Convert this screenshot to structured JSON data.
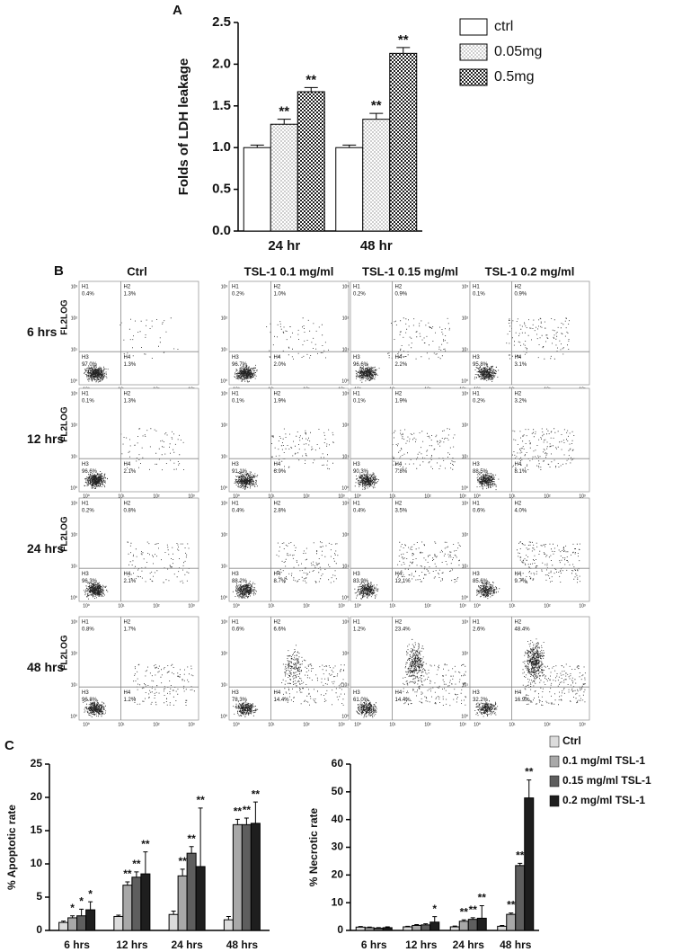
{
  "panel_labels": [
    "A",
    "B",
    "C"
  ],
  "chart_data": [
    {
      "type": "bar",
      "ylabel": "Folds of LDH leakage",
      "categories": [
        "24 hr",
        "48 hr"
      ],
      "ylim": [
        0,
        2.5
      ],
      "yticks": [
        {
          "value": 0,
          "label": "0.0"
        },
        {
          "value": 0.5,
          "label": "0.5"
        },
        {
          "value": 1,
          "label": "1.0"
        },
        {
          "value": 1.5,
          "label": "1.5"
        },
        {
          "value": 2,
          "label": "2.0"
        },
        {
          "value": 2.5,
          "label": "2.5"
        }
      ],
      "series": [
        {
          "name": "ctrl",
          "color": "#ffffff",
          "hatch": "none",
          "values": [
            1.0,
            1.0
          ],
          "errors": [
            0.03,
            0.03
          ],
          "annotations": [
            null,
            null
          ]
        },
        {
          "name": "0.05mg",
          "color": "#ffffff",
          "hatch": "dots",
          "values": [
            1.28,
            1.34
          ],
          "errors": [
            0.06,
            0.07
          ],
          "annotations": [
            "**",
            "**"
          ]
        },
        {
          "name": "0.5mg",
          "color": "#ffffff",
          "hatch": "checker",
          "values": [
            1.67,
            2.13
          ],
          "errors": [
            0.05,
            0.07
          ],
          "annotations": [
            "**",
            "**"
          ]
        }
      ]
    },
    {
      "type": "bar",
      "ylabel": "% Apoptotic rate",
      "categories": [
        "6 hrs",
        "12 hrs",
        "24 hrs",
        "48 hrs"
      ],
      "ylim": [
        0,
        25
      ],
      "yticks": [
        0,
        5,
        10,
        15,
        20,
        25
      ],
      "series": [
        {
          "color": "#dcdcdc",
          "values": [
            1.2,
            2.1,
            2.4,
            1.6
          ],
          "errors": [
            0.2,
            0.2,
            0.5,
            0.5
          ],
          "annotations": [
            null,
            null,
            null,
            null
          ]
        },
        {
          "color": "#a8a8a8",
          "values": [
            1.9,
            6.8,
            8.2,
            15.9
          ],
          "errors": [
            0.3,
            0.5,
            1.0,
            0.8
          ],
          "annotations": [
            "*",
            "**",
            "**",
            "**"
          ]
        },
        {
          "color": "#5e5e5e",
          "values": [
            2.2,
            8.0,
            11.6,
            15.9
          ],
          "errors": [
            1.0,
            0.8,
            1.0,
            1.0
          ],
          "annotations": [
            "*",
            "**",
            "**",
            "**"
          ]
        },
        {
          "color": "#1e1e1e",
          "values": [
            3.1,
            8.5,
            9.6,
            16.1
          ],
          "errors": [
            1.2,
            3.3,
            8.8,
            3.2
          ],
          "annotations": [
            "*",
            "**",
            "**",
            "**"
          ]
        }
      ]
    },
    {
      "type": "bar",
      "ylabel": "% Necrotic rate",
      "categories": [
        "6 hrs",
        "12 hrs",
        "24 hrs",
        "48 hrs"
      ],
      "ylim": [
        0,
        60
      ],
      "yticks": [
        0,
        10,
        20,
        30,
        40,
        50,
        60
      ],
      "series": [
        {
          "name": "Ctrl",
          "color": "#dcdcdc",
          "values": [
            1.2,
            1.3,
            1.3,
            1.5
          ],
          "errors": [
            0.2,
            0.2,
            0.3,
            0.3
          ],
          "annotations": [
            null,
            null,
            null,
            null
          ]
        },
        {
          "name": "0.1 mg/ml TSL-1",
          "color": "#a8a8a8",
          "values": [
            1.0,
            1.8,
            3.3,
            5.8
          ],
          "errors": [
            0.2,
            0.3,
            0.5,
            0.5
          ],
          "annotations": [
            null,
            null,
            "**",
            "**"
          ]
        },
        {
          "name": "0.15 mg/ml TSL-1",
          "color": "#5e5e5e",
          "values": [
            0.8,
            2.0,
            4.0,
            23.4
          ],
          "errors": [
            0.2,
            0.4,
            0.6,
            0.8
          ],
          "annotations": [
            null,
            null,
            "**",
            "**"
          ]
        },
        {
          "name": "0.2 mg/ml TSL-1",
          "color": "#1e1e1e",
          "values": [
            1.0,
            3.0,
            4.4,
            47.8
          ],
          "errors": [
            0.3,
            2.0,
            4.5,
            6.5
          ],
          "annotations": [
            null,
            "*",
            "**",
            "**"
          ]
        }
      ]
    }
  ],
  "flow_panel": {
    "columns": [
      "Ctrl",
      "TSL-1 0.1 mg/ml",
      "TSL-1 0.15 mg/ml",
      "TSL-1 0.2 mg/ml"
    ],
    "rows": [
      "6 hrs",
      "12 hrs",
      "24 hrs",
      "48 hrs"
    ],
    "y_axis_label": "FL2LOG",
    "quadrant_labels": [
      "H1",
      "H2",
      "H3",
      "H4"
    ],
    "axis_ticks": [
      "10⁰",
      "10¹",
      "10²",
      "10³"
    ],
    "percentages": [
      [
        [
          "0.4%",
          "1.3%",
          "97.0%",
          "1.3%"
        ],
        [
          "0.2%",
          "1.0%",
          "96.7%",
          "2.0%"
        ],
        [
          "0.2%",
          "0.9%",
          "96.6%",
          "2.2%"
        ],
        [
          "0.1%",
          "0.9%",
          "95.8%",
          "3.1%"
        ]
      ],
      [
        [
          "0.1%",
          "1.3%",
          "96.6%",
          "2.1%"
        ],
        [
          "0.1%",
          "1.9%",
          "91.1%",
          "6.9%"
        ],
        [
          "0.1%",
          "1.9%",
          "90.3%",
          "7.8%"
        ],
        [
          "0.2%",
          "3.2%",
          "88.5%",
          "8.1%"
        ]
      ],
      [
        [
          "0.2%",
          "0.8%",
          "96.3%",
          "2.1%"
        ],
        [
          "0.4%",
          "2.8%",
          "88.2%",
          "8.7%"
        ],
        [
          "0.4%",
          "3.5%",
          "83.9%",
          "12.1%"
        ],
        [
          "0.6%",
          "4.0%",
          "85.6%",
          "9.7%"
        ]
      ],
      [
        [
          "0.8%",
          "1.7%",
          "96.8%",
          "1.2%"
        ],
        [
          "0.6%",
          "6.6%",
          "78.3%",
          "14.4%"
        ],
        [
          "1.2%",
          "23.4%",
          "61.0%",
          "14.4%"
        ],
        [
          "2.6%",
          "48.4%",
          "32.2%",
          "16.9%"
        ]
      ]
    ]
  }
}
